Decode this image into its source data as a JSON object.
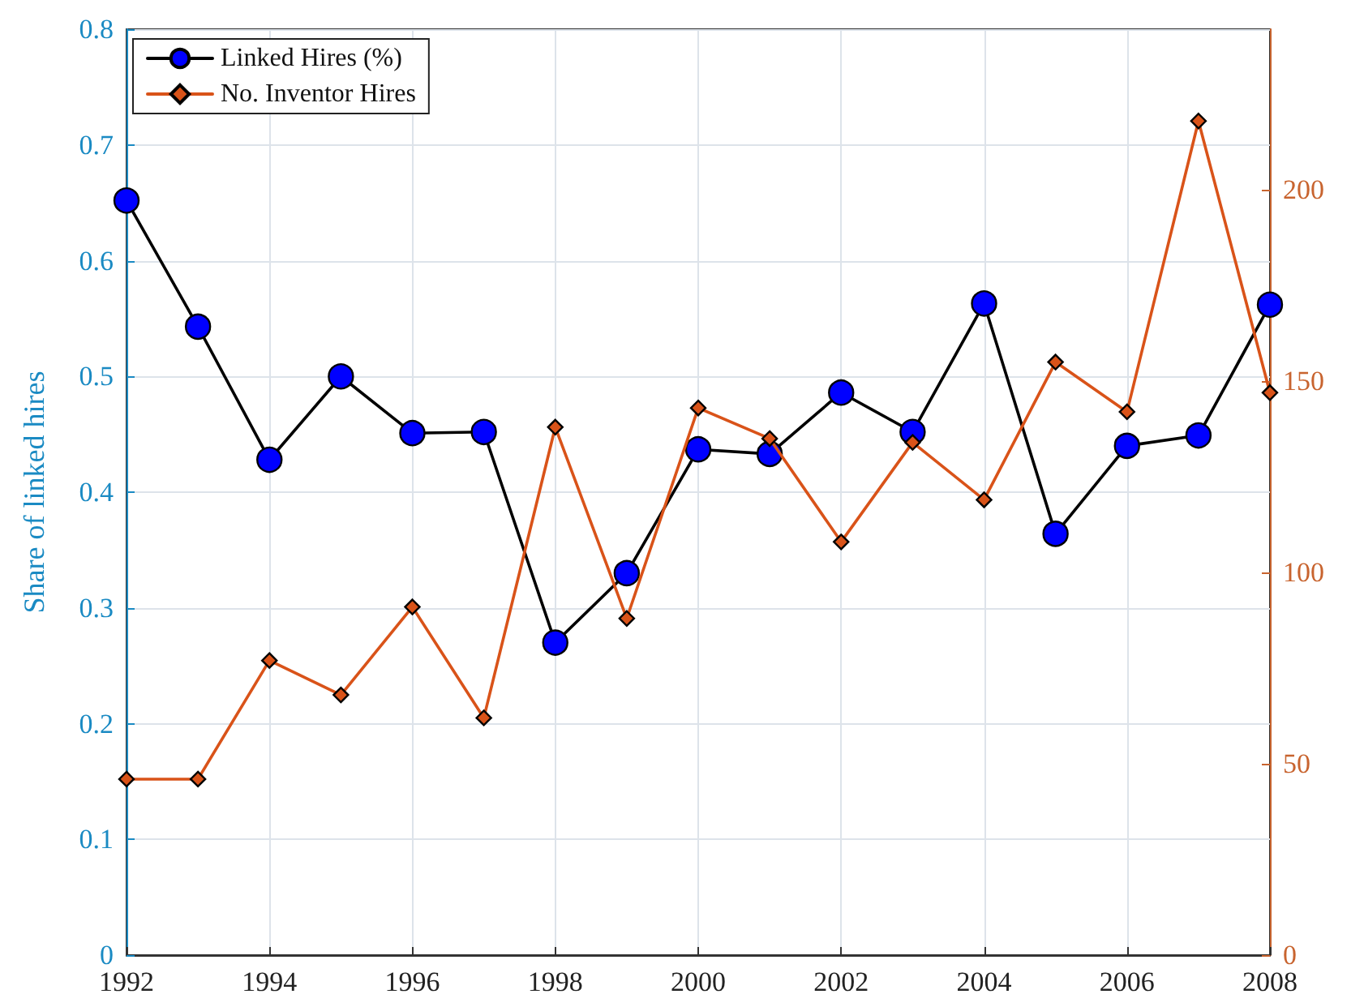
{
  "chart_data": {
    "type": "line",
    "ylabel": "Share of linked hires",
    "x": [
      1992,
      1993,
      1994,
      1995,
      1996,
      1997,
      1998,
      1999,
      2000,
      2001,
      2002,
      2003,
      2004,
      2005,
      2006,
      2007,
      2008
    ],
    "series": [
      {
        "name": "Linked Hires (%)",
        "color": "#0000ff",
        "marker": "circle",
        "values": [
          0.652,
          0.543,
          0.428,
          0.5,
          0.451,
          0.452,
          0.27,
          0.33,
          0.437,
          0.433,
          0.486,
          0.452,
          0.563,
          0.364,
          0.44,
          0.449,
          0.562
        ]
      },
      {
        "name": "No. Inventor Hires",
        "color": "#d95319",
        "marker": "diamond",
        "axis": "y2",
        "values": [
          46,
          46,
          77,
          68,
          91,
          62,
          138,
          88,
          143,
          135,
          108,
          134,
          119,
          155,
          142,
          218,
          147
        ]
      }
    ],
    "xlim": [
      1992,
      2008
    ],
    "xticks": [
      1992,
      1994,
      1996,
      1998,
      2000,
      2002,
      2004,
      2006,
      2008
    ],
    "ylim": [
      0,
      0.8
    ],
    "yticks": [
      0,
      0.1,
      0.2,
      0.3,
      0.4,
      0.5,
      0.6,
      0.7,
      0.8
    ],
    "y2lim": [
      0,
      242
    ],
    "y2ticks": [
      0,
      50,
      100,
      150,
      200
    ],
    "grid": true,
    "legend": "top left",
    "line_style": "solid"
  }
}
